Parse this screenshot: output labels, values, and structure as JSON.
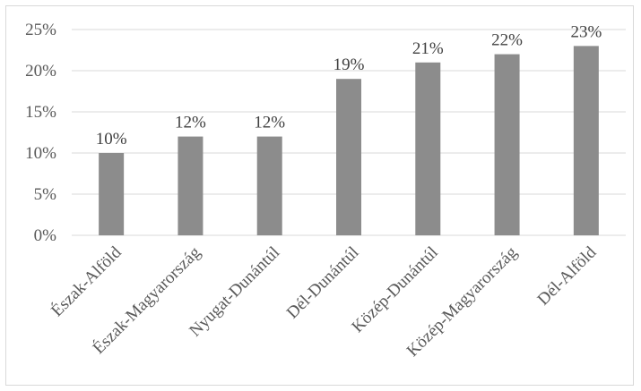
{
  "chart_data": {
    "type": "bar",
    "title": "",
    "xlabel": "",
    "ylabel": "",
    "categories": [
      "Észak-Alföld",
      "Észak-Magyarország",
      "Nyugat-Dunántúl",
      "Dél-Dunántúl",
      "Közép-Dunántúl",
      "Közép-Magyarország",
      "Dél-Alföld"
    ],
    "values": [
      10,
      12,
      12,
      19,
      21,
      22,
      23
    ],
    "data_labels": [
      "10%",
      "12%",
      "12%",
      "19%",
      "21%",
      "22%",
      "23%"
    ],
    "ylim": [
      0,
      25
    ],
    "yticks": [
      0,
      5,
      10,
      15,
      20,
      25
    ],
    "ytick_labels": [
      "0%",
      "5%",
      "10%",
      "15%",
      "20%",
      "25%"
    ],
    "grid": true,
    "legend": "none",
    "colors": {
      "bar": "#8c8c8c",
      "grid": "#d9d9d9",
      "text": "#404040"
    }
  }
}
